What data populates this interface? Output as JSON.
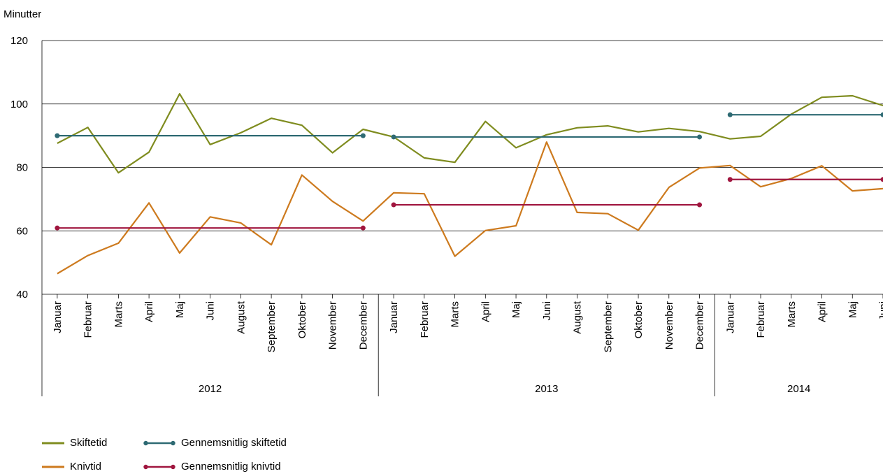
{
  "chart_data": {
    "type": "line",
    "ylabel": "Minutter",
    "ylim": [
      40,
      120
    ],
    "yticks": [
      40,
      60,
      80,
      100,
      120
    ],
    "grid": true,
    "categories": [
      "Januar",
      "Februar",
      "Marts",
      "April",
      "Maj",
      "Juni",
      "August",
      "September",
      "Oktober",
      "November",
      "December",
      "Januar",
      "Februar",
      "Marts",
      "April",
      "Maj",
      "Juni",
      "August",
      "September",
      "Oktober",
      "November",
      "December",
      "Januar",
      "Februar",
      "Marts",
      "April",
      "Maj",
      "Juni"
    ],
    "groups": [
      {
        "label": "2012",
        "count": 11
      },
      {
        "label": "2013",
        "count": 11
      },
      {
        "label": "2014",
        "count": 6
      }
    ],
    "series": [
      {
        "name": "Skiftetid",
        "color": "#7f8c1f",
        "kind": "line",
        "values": [
          87.6,
          92.6,
          78.3,
          84.8,
          103.2,
          87.2,
          90.9,
          95.5,
          93.3,
          84.6,
          92.0,
          89.6,
          83.0,
          81.6,
          94.5,
          86.2,
          90.3,
          92.5,
          93.1,
          91.2,
          92.3,
          91.3,
          89.0,
          89.8,
          96.8,
          102.1,
          102.6,
          99.5
        ]
      },
      {
        "name": "Knivtid",
        "color": "#cd7a1e",
        "kind": "line",
        "values": [
          46.5,
          52.2,
          56.1,
          68.8,
          53.0,
          64.4,
          62.5,
          55.6,
          77.6,
          69.3,
          63.1,
          72.0,
          71.7,
          52.0,
          60.1,
          61.6,
          88.0,
          65.8,
          65.4,
          60.2,
          73.7,
          79.8,
          80.6,
          73.9,
          76.5,
          80.5,
          72.6,
          73.3
        ]
      },
      {
        "name": "Gennemsnitlig skiftetid",
        "color": "#2e6a73",
        "kind": "avg",
        "segments": [
          {
            "from": 0,
            "to": 10,
            "value": 90.0
          },
          {
            "from": 11,
            "to": 21,
            "value": 89.6
          },
          {
            "from": 22,
            "to": 27,
            "value": 96.6
          }
        ]
      },
      {
        "name": "Gennemsnitlig knivtid",
        "color": "#a0163f",
        "kind": "avg",
        "segments": [
          {
            "from": 0,
            "to": 10,
            "value": 60.9
          },
          {
            "from": 11,
            "to": 21,
            "value": 68.2
          },
          {
            "from": 22,
            "to": 27,
            "value": 76.2
          }
        ]
      }
    ],
    "legend": [
      {
        "name": "Skiftetid",
        "color": "#7f8c1f",
        "marker": false
      },
      {
        "name": "Gennemsnitlig skiftetid",
        "color": "#2e6a73",
        "marker": true
      },
      {
        "name": "Knivtid",
        "color": "#cd7a1e",
        "marker": false
      },
      {
        "name": "Gennemsnitlig knivtid",
        "color": "#a0163f",
        "marker": true
      }
    ],
    "legend_position": "bottom-left"
  }
}
